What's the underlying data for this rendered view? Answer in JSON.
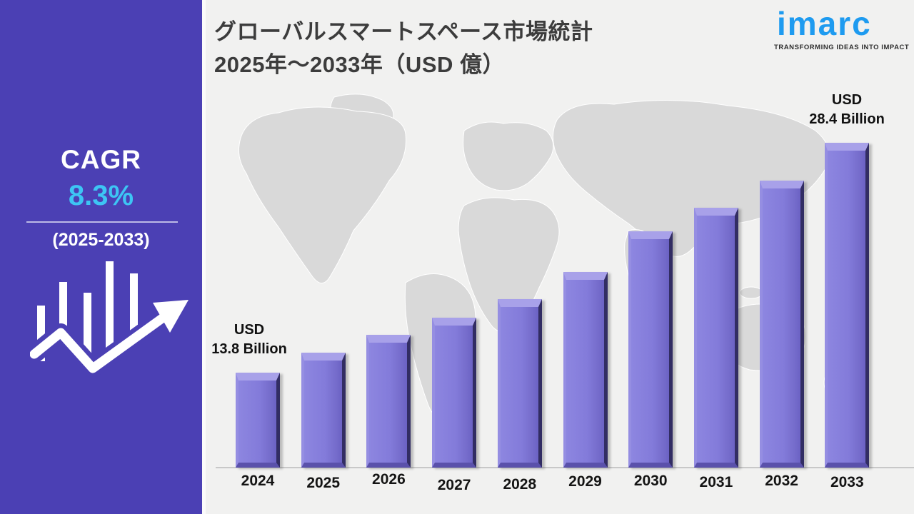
{
  "colors": {
    "sidebar_bg": "#4B40B4",
    "cagr_accent_blue": "#3DC5F4",
    "logo_blue": "#1E9BF0",
    "bar_fill": "#837CDB",
    "bar_bevel_light": "#A8A1E9",
    "bar_edge_dark": "#322D63",
    "panel_bg": "#F1F1F0",
    "map_fill": "#D9D9D9",
    "axis_line": "#C8C8C8",
    "title_text": "#3C3C3C",
    "label_text": "#141414"
  },
  "sidebar": {
    "cagr_label": "CAGR",
    "cagr_value": "8.3%",
    "cagr_period": "(2025-2033)",
    "icon": "growth-chart-arrow-icon"
  },
  "logo": {
    "brand": "imarc",
    "tagline": "TRANSFORMING IDEAS INTO IMPACT"
  },
  "chart_data": {
    "type": "bar",
    "title_line1": "グローバルスマートスペース市場統計",
    "title_line2": "2025年～2033年（USD 億）",
    "unit": "USD Billion",
    "categories": [
      "2024",
      "2025",
      "2026",
      "2027",
      "2028",
      "2029",
      "2030",
      "2031",
      "2032",
      "2033"
    ],
    "values": [
      13.8,
      15.1,
      16.2,
      17.3,
      18.5,
      20.2,
      22.8,
      24.3,
      26.0,
      28.4
    ],
    "values_note": "only 2024 (13.8) and 2033 (28.4) are labeled; intermediate values estimated from bar heights",
    "bar_labels": {
      "first": {
        "year": "2024",
        "line1": "USD",
        "line2": "13.8 Billion"
      },
      "last": {
        "year": "2033",
        "line1": "USD",
        "line2": "28.4 Billion"
      }
    },
    "xlabel": "",
    "ylabel": "",
    "ylim_implied": [
      7.8,
      29.6
    ],
    "grid": false,
    "legend": false,
    "background": "world-map-silhouette"
  }
}
